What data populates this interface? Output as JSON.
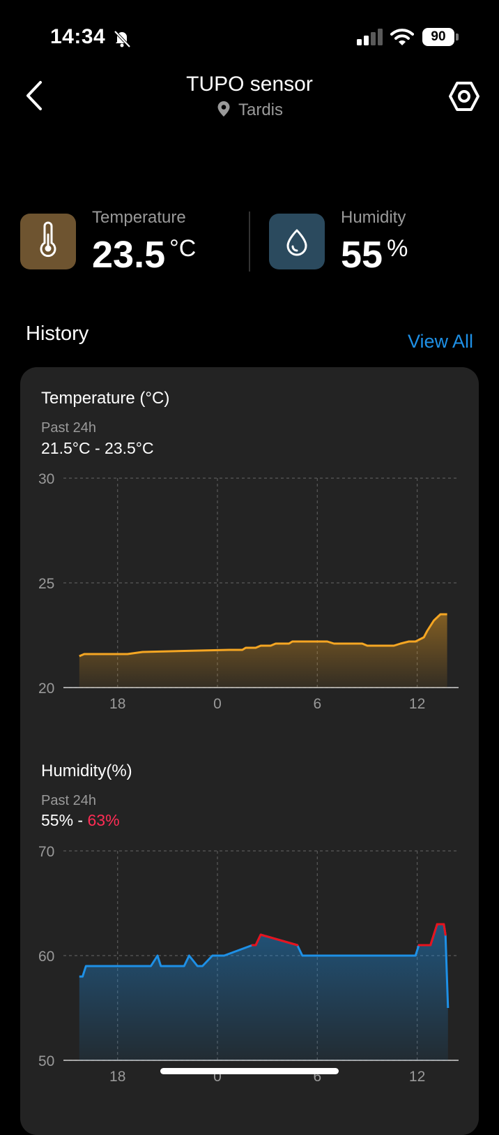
{
  "status_bar": {
    "time": "14:34",
    "battery": "90"
  },
  "header": {
    "title": "TUPO sensor",
    "location": "Tardis"
  },
  "readings": {
    "temperature": {
      "label": "Temperature",
      "value": "23.5",
      "unit": "°C"
    },
    "humidity": {
      "label": "Humidity",
      "value": "55",
      "unit": "%"
    }
  },
  "history": {
    "title": "History",
    "view_all": "View All"
  },
  "colors": {
    "temperature_line": "#f5a623",
    "humidity_line": "#1e90e6",
    "humidity_high": "#e8121c",
    "accent": "#1e90e6"
  },
  "chart_data": [
    {
      "type": "line",
      "title": "Temperature (°C)",
      "subtitle": "Past 24h",
      "range_low": "21.5°C",
      "range_sep": " - ",
      "range_high": "23.5°C",
      "ylim": [
        20,
        30
      ],
      "yticks": [
        "30",
        "25",
        "20"
      ],
      "xticks": [
        "18",
        "0",
        "6",
        "12"
      ],
      "grid": true,
      "x": [
        -8.3,
        -8,
        -5.4,
        -4.5,
        0.7,
        1.5,
        1.7,
        2.3,
        2.6,
        3.2,
        3.5,
        4.3,
        4.5,
        6.6,
        7,
        8.7,
        9,
        10.6,
        11,
        11.5,
        11.9,
        12.4,
        12.6,
        13,
        13.4,
        13.8
      ],
      "series": [
        {
          "values": [
            21.5,
            21.6,
            21.6,
            21.7,
            21.8,
            21.8,
            21.9,
            21.9,
            22.0,
            22.0,
            22.1,
            22.1,
            22.2,
            22.2,
            22.1,
            22.1,
            22.0,
            22.0,
            22.1,
            22.2,
            22.2,
            22.4,
            22.7,
            23.2,
            23.5,
            23.5
          ]
        }
      ]
    },
    {
      "type": "line",
      "title": "Humidity(%)",
      "subtitle": "Past 24h",
      "range_low": "55%",
      "range_sep": " - ",
      "range_high": "63%",
      "ylim": [
        50,
        70
      ],
      "yticks": [
        "70",
        "60",
        "50"
      ],
      "xticks": [
        "18",
        "0",
        "6",
        "12"
      ],
      "grid": true,
      "x": [
        -8.3,
        -8.1,
        -7.9,
        -4,
        -3.6,
        -3.4,
        -2,
        -1.7,
        -1.2,
        -0.9,
        -0.3,
        0.4,
        2.1,
        2.3,
        2.6,
        4.8,
        5.1,
        11.9,
        12.1,
        12.8,
        13.2,
        13.6,
        13.7,
        13.85
      ],
      "series": [
        {
          "values": [
            58,
            58,
            59,
            59,
            60,
            59,
            59,
            60,
            59,
            59,
            60,
            60,
            61,
            61,
            62,
            61,
            60,
            60,
            61,
            61,
            63,
            63,
            62,
            55
          ]
        }
      ]
    }
  ]
}
